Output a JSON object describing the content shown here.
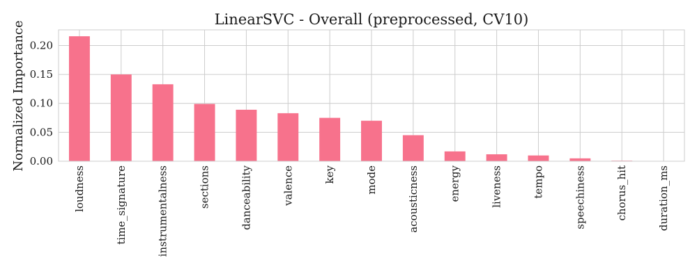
{
  "chart_data": {
    "type": "bar",
    "title": "LinearSVC - Overall (preprocessed, CV10)",
    "xlabel": "",
    "ylabel": "Normalized Importance",
    "categories": [
      "loudness",
      "time_signature",
      "instrumentalness",
      "sections",
      "danceability",
      "valence",
      "key",
      "mode",
      "acousticness",
      "energy",
      "liveness",
      "tempo",
      "speechiness",
      "chorus_hit",
      "duration_ms"
    ],
    "values": [
      0.216,
      0.15,
      0.133,
      0.099,
      0.089,
      0.083,
      0.075,
      0.07,
      0.045,
      0.017,
      0.012,
      0.01,
      0.005,
      0.001,
      0.0
    ],
    "ylim": [
      0,
      0.227
    ],
    "yticks": [
      "0.00",
      "0.05",
      "0.10",
      "0.15",
      "0.20"
    ],
    "grid": true,
    "bar_color": "#f7728c"
  }
}
